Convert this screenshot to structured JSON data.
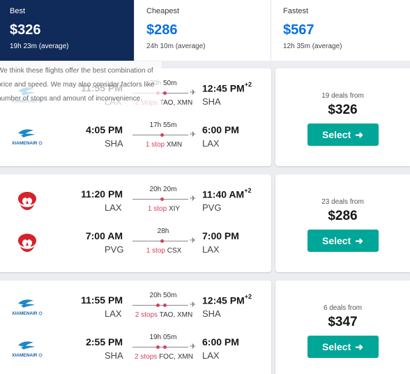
{
  "tabs": [
    {
      "title": "Best",
      "price": "$326",
      "sub": "19h 23m (average)"
    },
    {
      "title": "Cheapest",
      "price": "$286",
      "sub": "24h 10m (average)"
    },
    {
      "title": "Fastest",
      "price": "$567",
      "sub": "12h 35m (average)"
    }
  ],
  "tooltip": {
    "lines": [
      "We think these flights offer the best combination of",
      "price and speed. We may also consider factors like",
      "number of stops and amount of inconvenience."
    ]
  },
  "results": [
    {
      "deals": "19 deals from",
      "price": "$326",
      "select": "Select",
      "legs": [
        {
          "airline": "XIAMEN AIR",
          "depart": "11:55 PM",
          "from": "LAX",
          "duration": "20h 50m",
          "arrive": "12:45 PM",
          "days": "+2",
          "to": "SHA",
          "stops": "2 stops",
          "via": "TAO, XMN"
        },
        {
          "airline": "XIAMEN AIR",
          "depart": "4:05 PM",
          "from": "SHA",
          "duration": "17h 55m",
          "arrive": "6:00 PM",
          "days": "",
          "to": "LAX",
          "stops": "1 stop",
          "via": "XMN"
        }
      ]
    },
    {
      "deals": "23 deals from",
      "price": "$286",
      "select": "Select",
      "legs": [
        {
          "airline": "Hainan Airlines",
          "depart": "11:20 PM",
          "from": "LAX",
          "duration": "20h 20m",
          "arrive": "11:40 AM",
          "days": "+2",
          "to": "PVG",
          "stops": "1 stop",
          "via": "XIY"
        },
        {
          "airline": "Hainan Airlines",
          "depart": "7:00 AM",
          "from": "PVG",
          "duration": "28h",
          "arrive": "7:00 PM",
          "days": "",
          "to": "LAX",
          "stops": "1 stop",
          "via": "CSX"
        }
      ]
    },
    {
      "deals": "6 deals from",
      "price": "$347",
      "select": "Select",
      "legs": [
        {
          "airline": "XIAMEN AIR",
          "depart": "11:55 PM",
          "from": "LAX",
          "duration": "20h 50m",
          "arrive": "12:45 PM",
          "days": "+2",
          "to": "SHA",
          "stops": "2 stops",
          "via": "TAO, XMN"
        },
        {
          "airline": "XIAMEN AIR",
          "depart": "2:55 PM",
          "from": "SHA",
          "duration": "19h 05m",
          "arrive": "6:00 PM",
          "days": "",
          "to": "LAX",
          "stops": "2 stops",
          "via": "FOC, XMN"
        }
      ]
    }
  ],
  "colors": {
    "best_tab": "#102a5a",
    "accent_blue": "#0770e3",
    "select_green": "#00a698",
    "stop_red": "#d1435b"
  },
  "icons": {
    "xiamen": "xiamen-air-logo",
    "hainan": "hainan-airlines-logo",
    "plane": "plane-icon",
    "arrow": "arrow-right-icon"
  }
}
